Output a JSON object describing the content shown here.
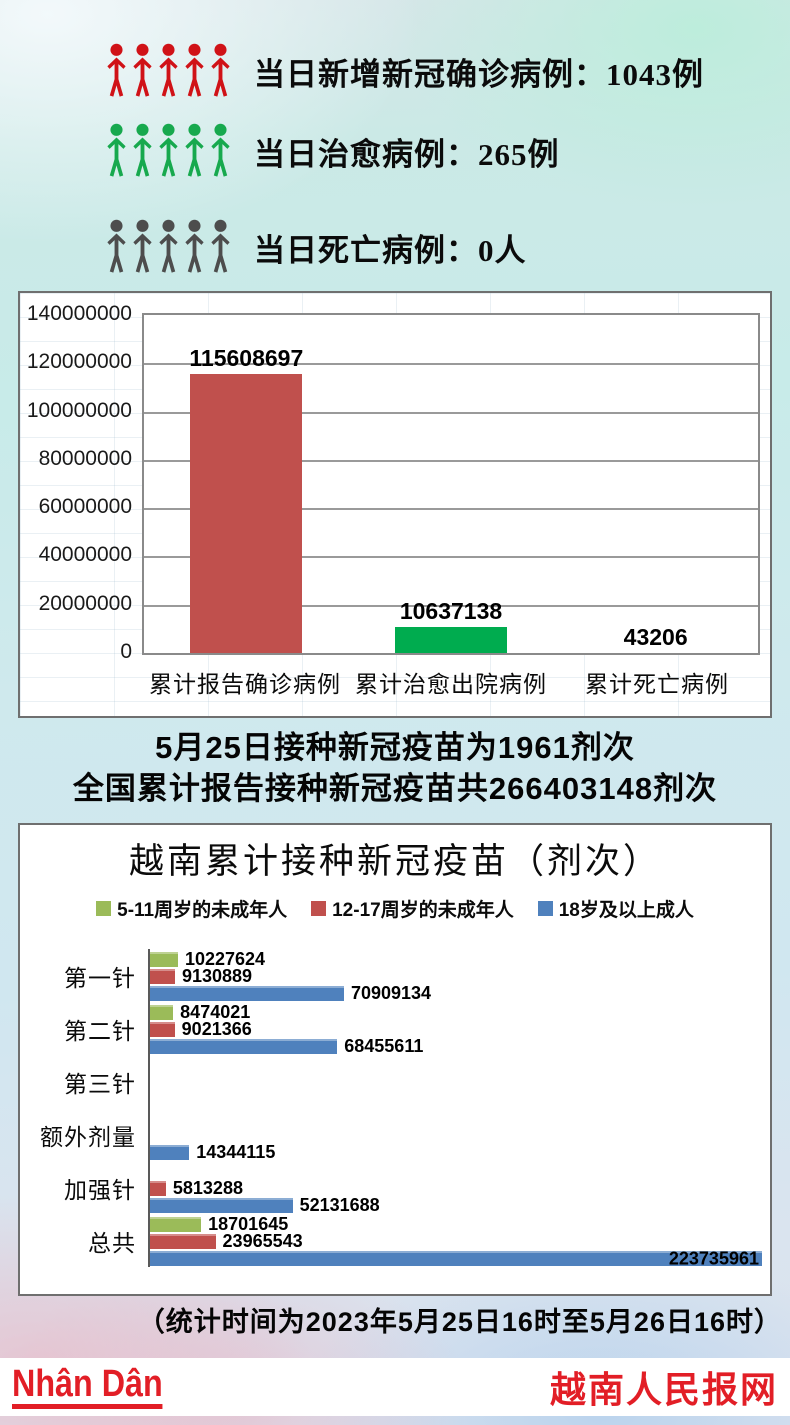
{
  "stats": {
    "rows": [
      {
        "label": "当日新增新冠确诊病例：1043例",
        "icon_color": "#d01217",
        "icon": "person-icon"
      },
      {
        "label": "当日治愈病例：265例",
        "icon_color": "#17a94e",
        "icon": "person-icon"
      },
      {
        "label": "当日死亡病例：0人",
        "icon_color": "#4d4d4d",
        "icon": "person-icon"
      }
    ]
  },
  "mid_text": {
    "line1": "5月25日接种新冠疫苗为1961剂次",
    "line2": "全国累计报告接种新冠疫苗共266403148剂次"
  },
  "chart_data": [
    {
      "type": "bar",
      "orientation": "vertical",
      "title": "",
      "categories": [
        "累计报告确诊病例",
        "累计治愈出院病例",
        "累计死亡病例"
      ],
      "values": [
        115608697,
        10637138,
        43206
      ],
      "bar_colors": [
        "#c0504d",
        "#00ac4f",
        "#9a9a9a"
      ],
      "value_labels": [
        "115608697",
        "10637138",
        "43206"
      ],
      "ylim": [
        0,
        140000000
      ],
      "ytick_step": 20000000,
      "yticks": [
        "140000000",
        "120000000",
        "100000000",
        "80000000",
        "60000000",
        "40000000",
        "20000000",
        "0"
      ],
      "grid": true,
      "legend_position": "none"
    },
    {
      "type": "bar",
      "orientation": "horizontal",
      "title": "越南累计接种新冠疫苗（剂次）",
      "categories": [
        "第一针",
        "第二针",
        "第三针",
        "额外剂量",
        "加强针",
        "总共"
      ],
      "series": [
        {
          "name": "5-11周岁的未成年人",
          "color": "#9bbb59",
          "values": [
            10227624,
            8474021,
            null,
            null,
            null,
            18701645
          ]
        },
        {
          "name": "12-17周岁的未成年人",
          "color": "#c0504d",
          "values": [
            9130889,
            9021366,
            null,
            null,
            5813288,
            23965543
          ]
        },
        {
          "name": "18岁及以上成人",
          "color": "#4f81bd",
          "values": [
            70909134,
            68455611,
            null,
            14344115,
            52131688,
            223735961
          ]
        }
      ],
      "xlim": [
        0,
        223735961
      ],
      "grid": false,
      "legend_position": "top"
    }
  ],
  "footnote": "（统计时间为2023年5月25日16时至5月26日16时）",
  "brand": {
    "logo_text": "Nhân Dân",
    "site_name": "越南人民报网",
    "accent_color": "#e21e26"
  }
}
